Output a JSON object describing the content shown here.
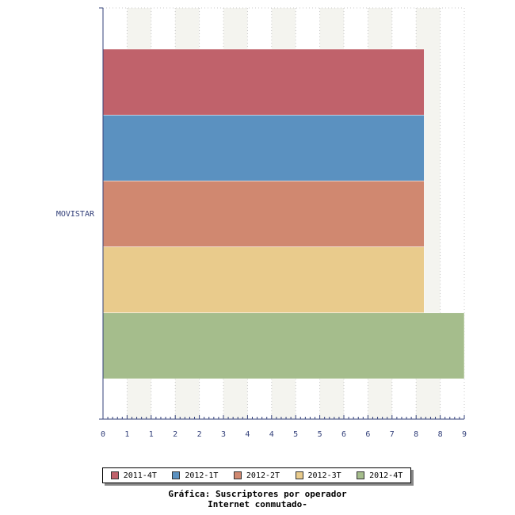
{
  "chart_data": {
    "type": "bar",
    "orientation": "horizontal",
    "categories": [
      "MOVISTAR"
    ],
    "series": [
      {
        "name": "2011-4T",
        "values": [
          8
        ],
        "color": "#c0626b"
      },
      {
        "name": "2012-1T",
        "values": [
          8
        ],
        "color": "#5b91c0"
      },
      {
        "name": "2012-2T",
        "values": [
          8
        ],
        "color": "#d08870"
      },
      {
        "name": "2012-3T",
        "values": [
          8
        ],
        "color": "#e9cb8c"
      },
      {
        "name": "2012-4T",
        "values": [
          9
        ],
        "color": "#a5bd8c"
      }
    ],
    "x_tick_labels": [
      "0",
      "1",
      "1",
      "2",
      "2",
      "3",
      "4",
      "4",
      "5",
      "5",
      "6",
      "6",
      "7",
      "8",
      "8",
      "9"
    ],
    "xlim": [
      0,
      9
    ],
    "grid": true,
    "legend_position": "bottom"
  },
  "caption": {
    "line1": "Gráfica: Suscriptores por operador",
    "line2": "Internet conmutado-"
  }
}
